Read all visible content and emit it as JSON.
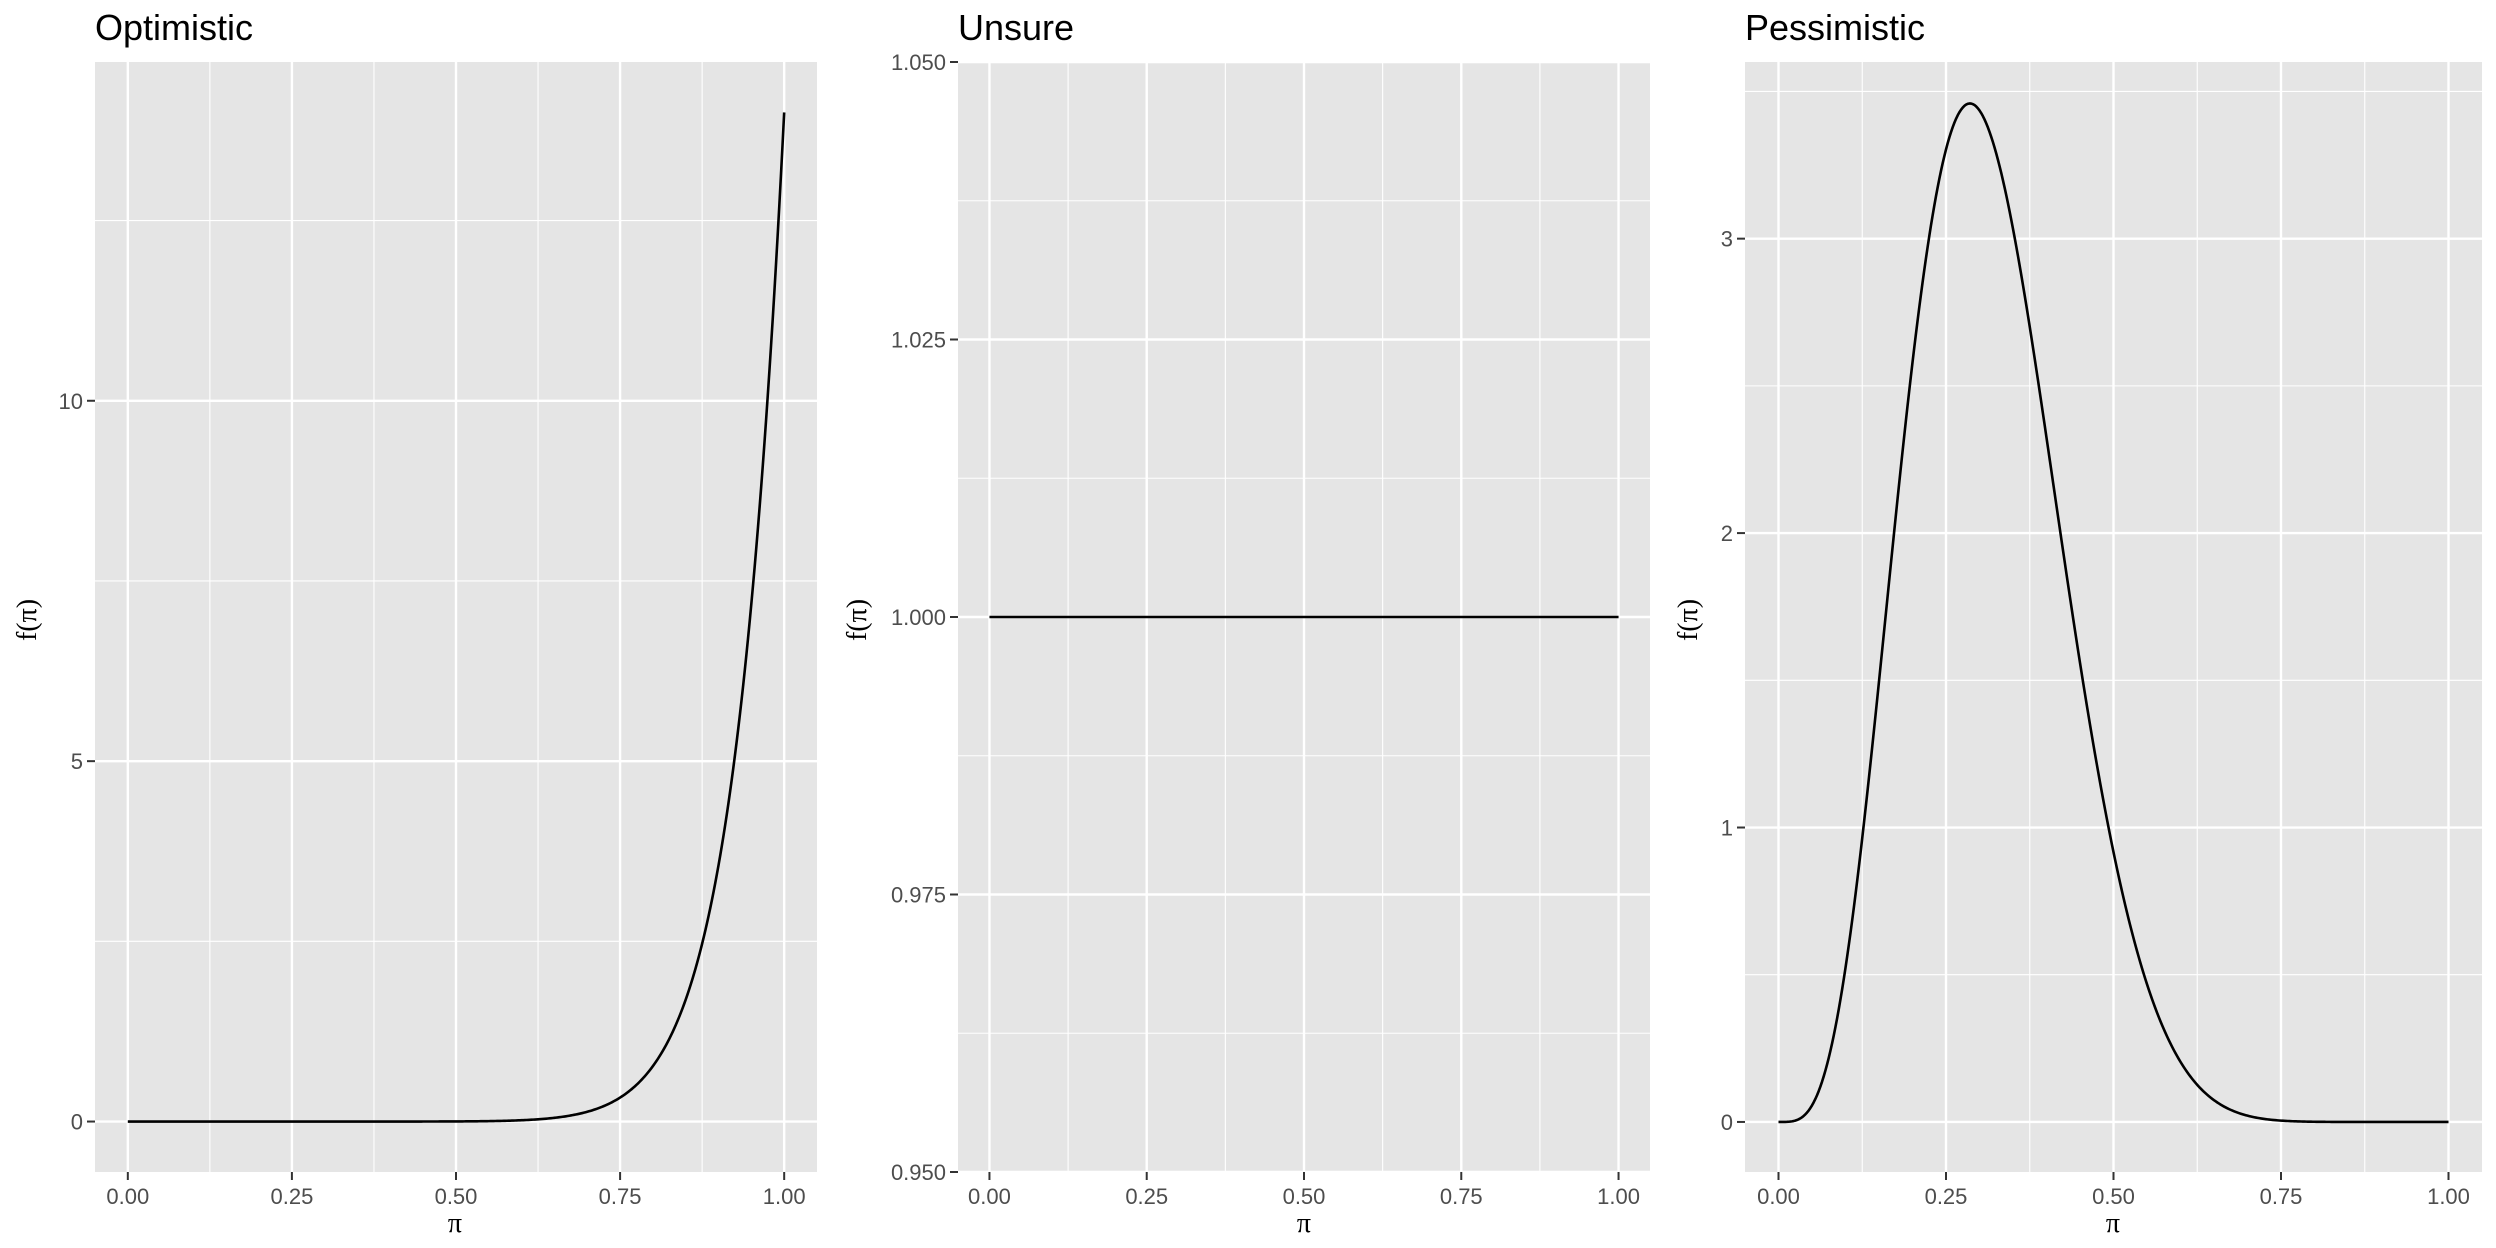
{
  "chart_data": [
    {
      "type": "line",
      "title": "Optimistic",
      "xlabel": "π",
      "ylabel": "f(π)",
      "xlim": [
        -0.05,
        1.05
      ],
      "ylim": [
        -0.7,
        14.7
      ],
      "x_ticks": [
        0,
        0.25,
        0.5,
        0.75,
        1
      ],
      "x_tick_labels": [
        "0.00",
        "0.25",
        "0.50",
        "0.75",
        "1.00"
      ],
      "y_ticks": [
        0,
        5,
        10
      ],
      "y_tick_labels": [
        "0",
        "5",
        "10"
      ],
      "grid": true,
      "series": [
        {
          "distribution": "beta",
          "alpha": 14,
          "beta": 1,
          "x_range": [
            0,
            1
          ],
          "color": "#000000"
        }
      ]
    },
    {
      "type": "line",
      "title": "Unsure",
      "xlabel": "π",
      "ylabel": "f(π)",
      "xlim": [
        -0.05,
        1.05
      ],
      "ylim": [
        0.95,
        1.05
      ],
      "x_ticks": [
        0,
        0.25,
        0.5,
        0.75,
        1
      ],
      "x_tick_labels": [
        "0.00",
        "0.25",
        "0.50",
        "0.75",
        "1.00"
      ],
      "y_ticks": [
        0.95,
        0.975,
        1,
        1.025,
        1.05
      ],
      "y_tick_labels": [
        "0.950",
        "0.975",
        "1.000",
        "1.025",
        "1.050"
      ],
      "grid": true,
      "series": [
        {
          "distribution": "beta",
          "alpha": 1,
          "beta": 1,
          "x_range": [
            0,
            1
          ],
          "color": "#000000"
        }
      ]
    },
    {
      "type": "line",
      "title": "Pessimistic",
      "xlabel": "π",
      "ylabel": "f(π)",
      "xlim": [
        -0.05,
        1.05
      ],
      "ylim": [
        -0.17,
        3.6
      ],
      "x_ticks": [
        0,
        0.25,
        0.5,
        0.75,
        1
      ],
      "x_tick_labels": [
        "0.00",
        "0.25",
        "0.50",
        "0.75",
        "1.00"
      ],
      "y_ticks": [
        0,
        1,
        2,
        3
      ],
      "y_tick_labels": [
        "0",
        "1",
        "2",
        "3"
      ],
      "grid": true,
      "series": [
        {
          "distribution": "beta",
          "alpha": 5,
          "beta": 11,
          "x_range": [
            0,
            1
          ],
          "color": "#000000"
        }
      ]
    }
  ]
}
